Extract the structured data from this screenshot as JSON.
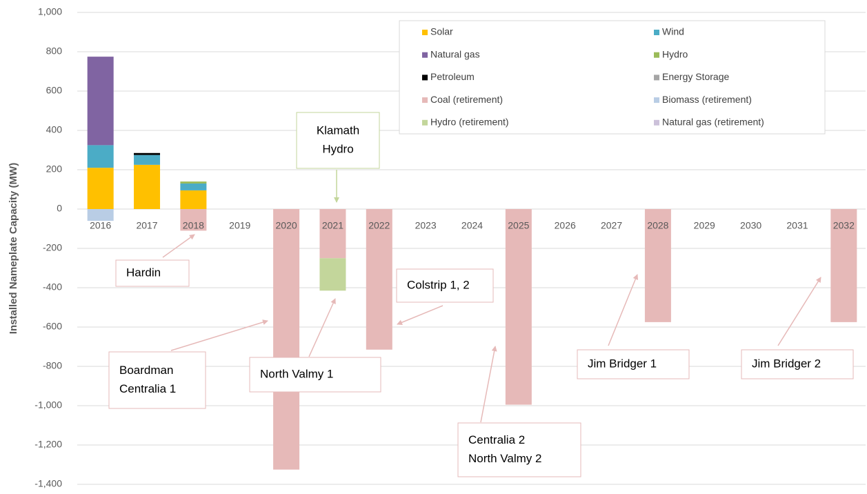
{
  "chart_data": {
    "type": "bar",
    "stacked": true,
    "y_label": "Installed Nameplate Capacity (MW)",
    "categories": [
      "2016",
      "2017",
      "2018",
      "2019",
      "2020",
      "2021",
      "2022",
      "2023",
      "2024",
      "2025",
      "2026",
      "2027",
      "2028",
      "2029",
      "2030",
      "2031",
      "2032"
    ],
    "series": [
      {
        "name": "Solar",
        "color": "#FFC000",
        "values": [
          210,
          225,
          95,
          null,
          null,
          null,
          null,
          null,
          null,
          null,
          null,
          null,
          null,
          null,
          null,
          null,
          null
        ]
      },
      {
        "name": "Wind",
        "color": "#4BACC6",
        "values": [
          115,
          50,
          35,
          null,
          null,
          null,
          null,
          null,
          null,
          null,
          null,
          null,
          null,
          null,
          null,
          null,
          null
        ]
      },
      {
        "name": "Natural gas",
        "color": "#8064A2",
        "values": [
          450,
          null,
          null,
          null,
          null,
          null,
          null,
          null,
          null,
          null,
          null,
          null,
          null,
          null,
          null,
          null,
          null
        ]
      },
      {
        "name": "Hydro",
        "color": "#9BBB59",
        "values": [
          null,
          null,
          10,
          null,
          null,
          null,
          null,
          null,
          null,
          null,
          null,
          null,
          null,
          null,
          null,
          null,
          null
        ]
      },
      {
        "name": "Petroleum",
        "color": "#000000",
        "values": [
          null,
          10,
          null,
          null,
          null,
          null,
          null,
          null,
          null,
          null,
          null,
          null,
          null,
          null,
          null,
          null,
          null
        ]
      },
      {
        "name": "Energy Storage",
        "color": "#A5A5A5",
        "values": [
          null,
          null,
          null,
          null,
          null,
          null,
          null,
          null,
          null,
          null,
          null,
          null,
          null,
          null,
          null,
          null,
          null
        ]
      },
      {
        "name": "Coal (retirement)",
        "color": "#E6B9B8",
        "values": [
          null,
          null,
          -110,
          null,
          -1325,
          -250,
          -715,
          null,
          null,
          -995,
          null,
          null,
          -575,
          null,
          null,
          null,
          -575
        ]
      },
      {
        "name": "Biomass (retirement)",
        "color": "#B9CDE5",
        "values": [
          -60,
          null,
          null,
          null,
          null,
          null,
          null,
          null,
          null,
          null,
          null,
          null,
          null,
          null,
          null,
          null,
          null
        ]
      },
      {
        "name": "Hydro (retirement)",
        "color": "#C3D69B",
        "values": [
          null,
          null,
          null,
          null,
          null,
          -165,
          null,
          null,
          null,
          null,
          null,
          null,
          null,
          null,
          null,
          null,
          null
        ]
      },
      {
        "name": "Natural gas (retirement)",
        "color": "#CCC1DA",
        "values": [
          null,
          null,
          null,
          null,
          null,
          null,
          null,
          null,
          null,
          null,
          null,
          null,
          null,
          null,
          null,
          null,
          null
        ]
      }
    ],
    "ylim": [
      -1400,
      1000
    ],
    "yticks": [
      {
        "value": 1000,
        "label": "1,000"
      },
      800,
      600,
      400,
      200,
      0,
      -200,
      -400,
      -600,
      -800,
      {
        "value": -1000,
        "label": "-1,000"
      },
      {
        "value": -1200,
        "label": "-1,200"
      },
      {
        "value": -1400,
        "label": "-1,400"
      }
    ],
    "grid": true,
    "legend": "top-right",
    "annotations": [
      {
        "lines": [
          "Klamath",
          "Hydro"
        ],
        "color": "#C3D69B"
      },
      {
        "lines": [
          "Hardin"
        ],
        "color": "#E6B9B8"
      },
      {
        "lines": [
          "Boardman",
          "Centralia 1"
        ],
        "color": "#E6B9B8"
      },
      {
        "lines": [
          "North Valmy 1"
        ],
        "color": "#E6B9B8"
      },
      {
        "lines": [
          "Colstrip 1, 2"
        ],
        "color": "#E6B9B8"
      },
      {
        "lines": [
          "Centralia 2",
          "North Valmy 2"
        ],
        "color": "#E6B9B8"
      },
      {
        "lines": [
          "Jim Bridger 1"
        ],
        "color": "#E6B9B8"
      },
      {
        "lines": [
          "Jim Bridger 2"
        ],
        "color": "#E6B9B8"
      }
    ]
  }
}
